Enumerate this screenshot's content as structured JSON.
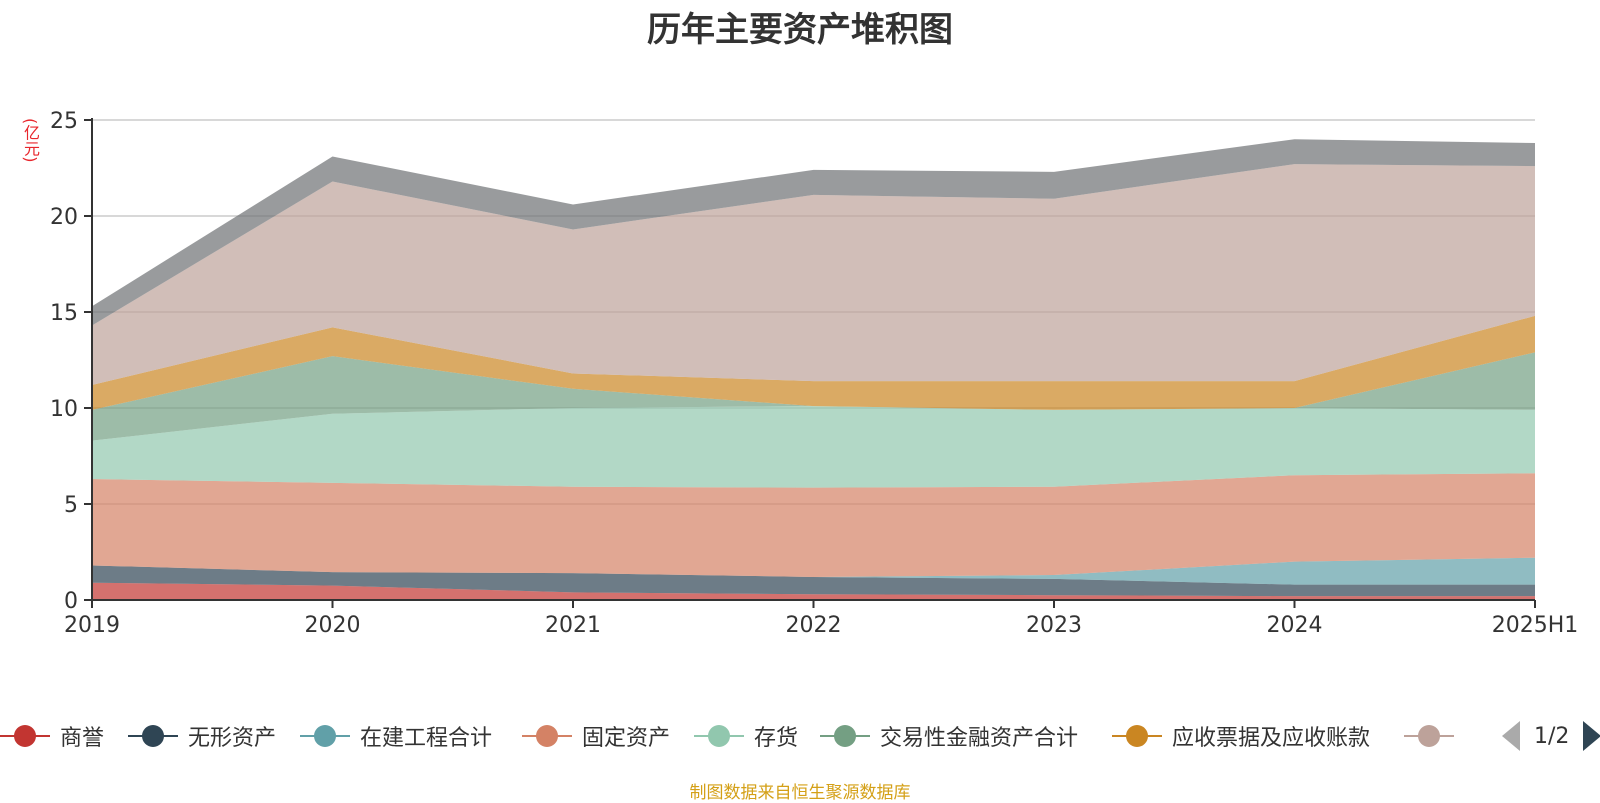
{
  "chart_data": {
    "type": "area",
    "stacked": true,
    "title": "历年主要资产堆积图",
    "ylabel": "(亿元)",
    "xlabel": "",
    "categories": [
      "2019",
      "2020",
      "2021",
      "2022",
      "2023",
      "2024",
      "2025H1"
    ],
    "ylim": [
      0,
      25
    ],
    "yticks": [
      0,
      5,
      10,
      15,
      20,
      25
    ],
    "grid": true,
    "series": [
      {
        "name": "商誉",
        "color": "#c23531",
        "values": [
          0.9,
          0.75,
          0.4,
          0.3,
          0.25,
          0.2,
          0.2
        ]
      },
      {
        "name": "无形资产",
        "color": "#2f4554",
        "values": [
          0.9,
          0.7,
          1.0,
          0.9,
          0.85,
          0.6,
          0.6
        ]
      },
      {
        "name": "在建工程合计",
        "color": "#61a0a8",
        "values": [
          0.0,
          0.0,
          0.0,
          0.0,
          0.2,
          1.2,
          1.4
        ]
      },
      {
        "name": "固定资产",
        "color": "#d48265",
        "values": [
          4.5,
          4.65,
          4.5,
          4.65,
          4.6,
          4.5,
          4.4
        ]
      },
      {
        "name": "存货",
        "color": "#91c7ae",
        "values": [
          2.0,
          3.6,
          4.1,
          4.25,
          4.0,
          3.5,
          3.3
        ]
      },
      {
        "name": "交易性金融资产合计",
        "color": "#749f83",
        "values": [
          1.6,
          3.0,
          1.0,
          0.0,
          0.0,
          0.0,
          3.0
        ]
      },
      {
        "name": "应收票据及应收账款",
        "color": "#ca8622",
        "values": [
          1.3,
          1.5,
          0.8,
          1.3,
          1.5,
          1.4,
          1.9
        ]
      },
      {
        "name": "",
        "color": "#bda29a",
        "values": [
          3.1,
          7.6,
          7.5,
          9.7,
          9.5,
          11.3,
          7.8
        ]
      },
      {
        "name": "",
        "color": "#6e7074",
        "values": [
          1.0,
          1.3,
          1.3,
          1.3,
          1.4,
          1.3,
          1.2
        ]
      }
    ],
    "legend_position": "bottom",
    "legend_page": "1/2"
  },
  "source_note": "制图数据来自恒生聚源数据库"
}
